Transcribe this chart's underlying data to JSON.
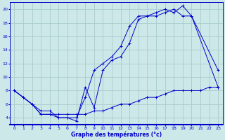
{
  "title": "Graphe des températures (°c)",
  "background_color": "#cce8e8",
  "grid_color": "#aacccc",
  "line_color": "#0000cc",
  "xlim": [
    -0.5,
    23.5
  ],
  "ylim": [
    3,
    21
  ],
  "xticks": [
    0,
    1,
    2,
    3,
    4,
    5,
    6,
    7,
    8,
    9,
    10,
    11,
    12,
    13,
    14,
    15,
    16,
    17,
    18,
    19,
    20,
    21,
    22,
    23
  ],
  "yticks": [
    4,
    6,
    8,
    10,
    12,
    14,
    16,
    18,
    20
  ],
  "series": [
    {
      "x": [
        0,
        1,
        2,
        3,
        4,
        5,
        6,
        7,
        8,
        9,
        10,
        11,
        12,
        13,
        14,
        15,
        16,
        17,
        18,
        19,
        20,
        23
      ],
      "y": [
        8,
        7,
        6,
        5,
        5,
        4,
        4,
        4,
        7,
        11,
        12,
        13,
        14.5,
        17.5,
        19,
        19,
        19.5,
        20,
        19.5,
        20.5,
        19,
        8.5
      ]
    },
    {
      "x": [
        0,
        2,
        3,
        4,
        5,
        6,
        7,
        8,
        9,
        10,
        11,
        12,
        13,
        14,
        15,
        16,
        17,
        18,
        19,
        20,
        23
      ],
      "y": [
        8,
        6,
        4.5,
        4.5,
        4,
        4,
        3.5,
        8.5,
        5.5,
        11,
        12.5,
        13,
        15,
        18.5,
        19,
        19,
        19.5,
        20,
        19,
        19,
        11
      ]
    },
    {
      "x": [
        0,
        1,
        2,
        3,
        4,
        5,
        6,
        7,
        8,
        9,
        10,
        11,
        12,
        13,
        14,
        15,
        16,
        17,
        18,
        19,
        20,
        21,
        22,
        23
      ],
      "y": [
        8,
        7,
        6,
        4.5,
        4.5,
        4.5,
        4.5,
        4.5,
        4.5,
        5,
        5,
        5.5,
        6,
        6,
        6.5,
        7,
        7,
        7.5,
        8,
        8,
        8,
        8,
        8.5,
        8.5
      ]
    }
  ]
}
